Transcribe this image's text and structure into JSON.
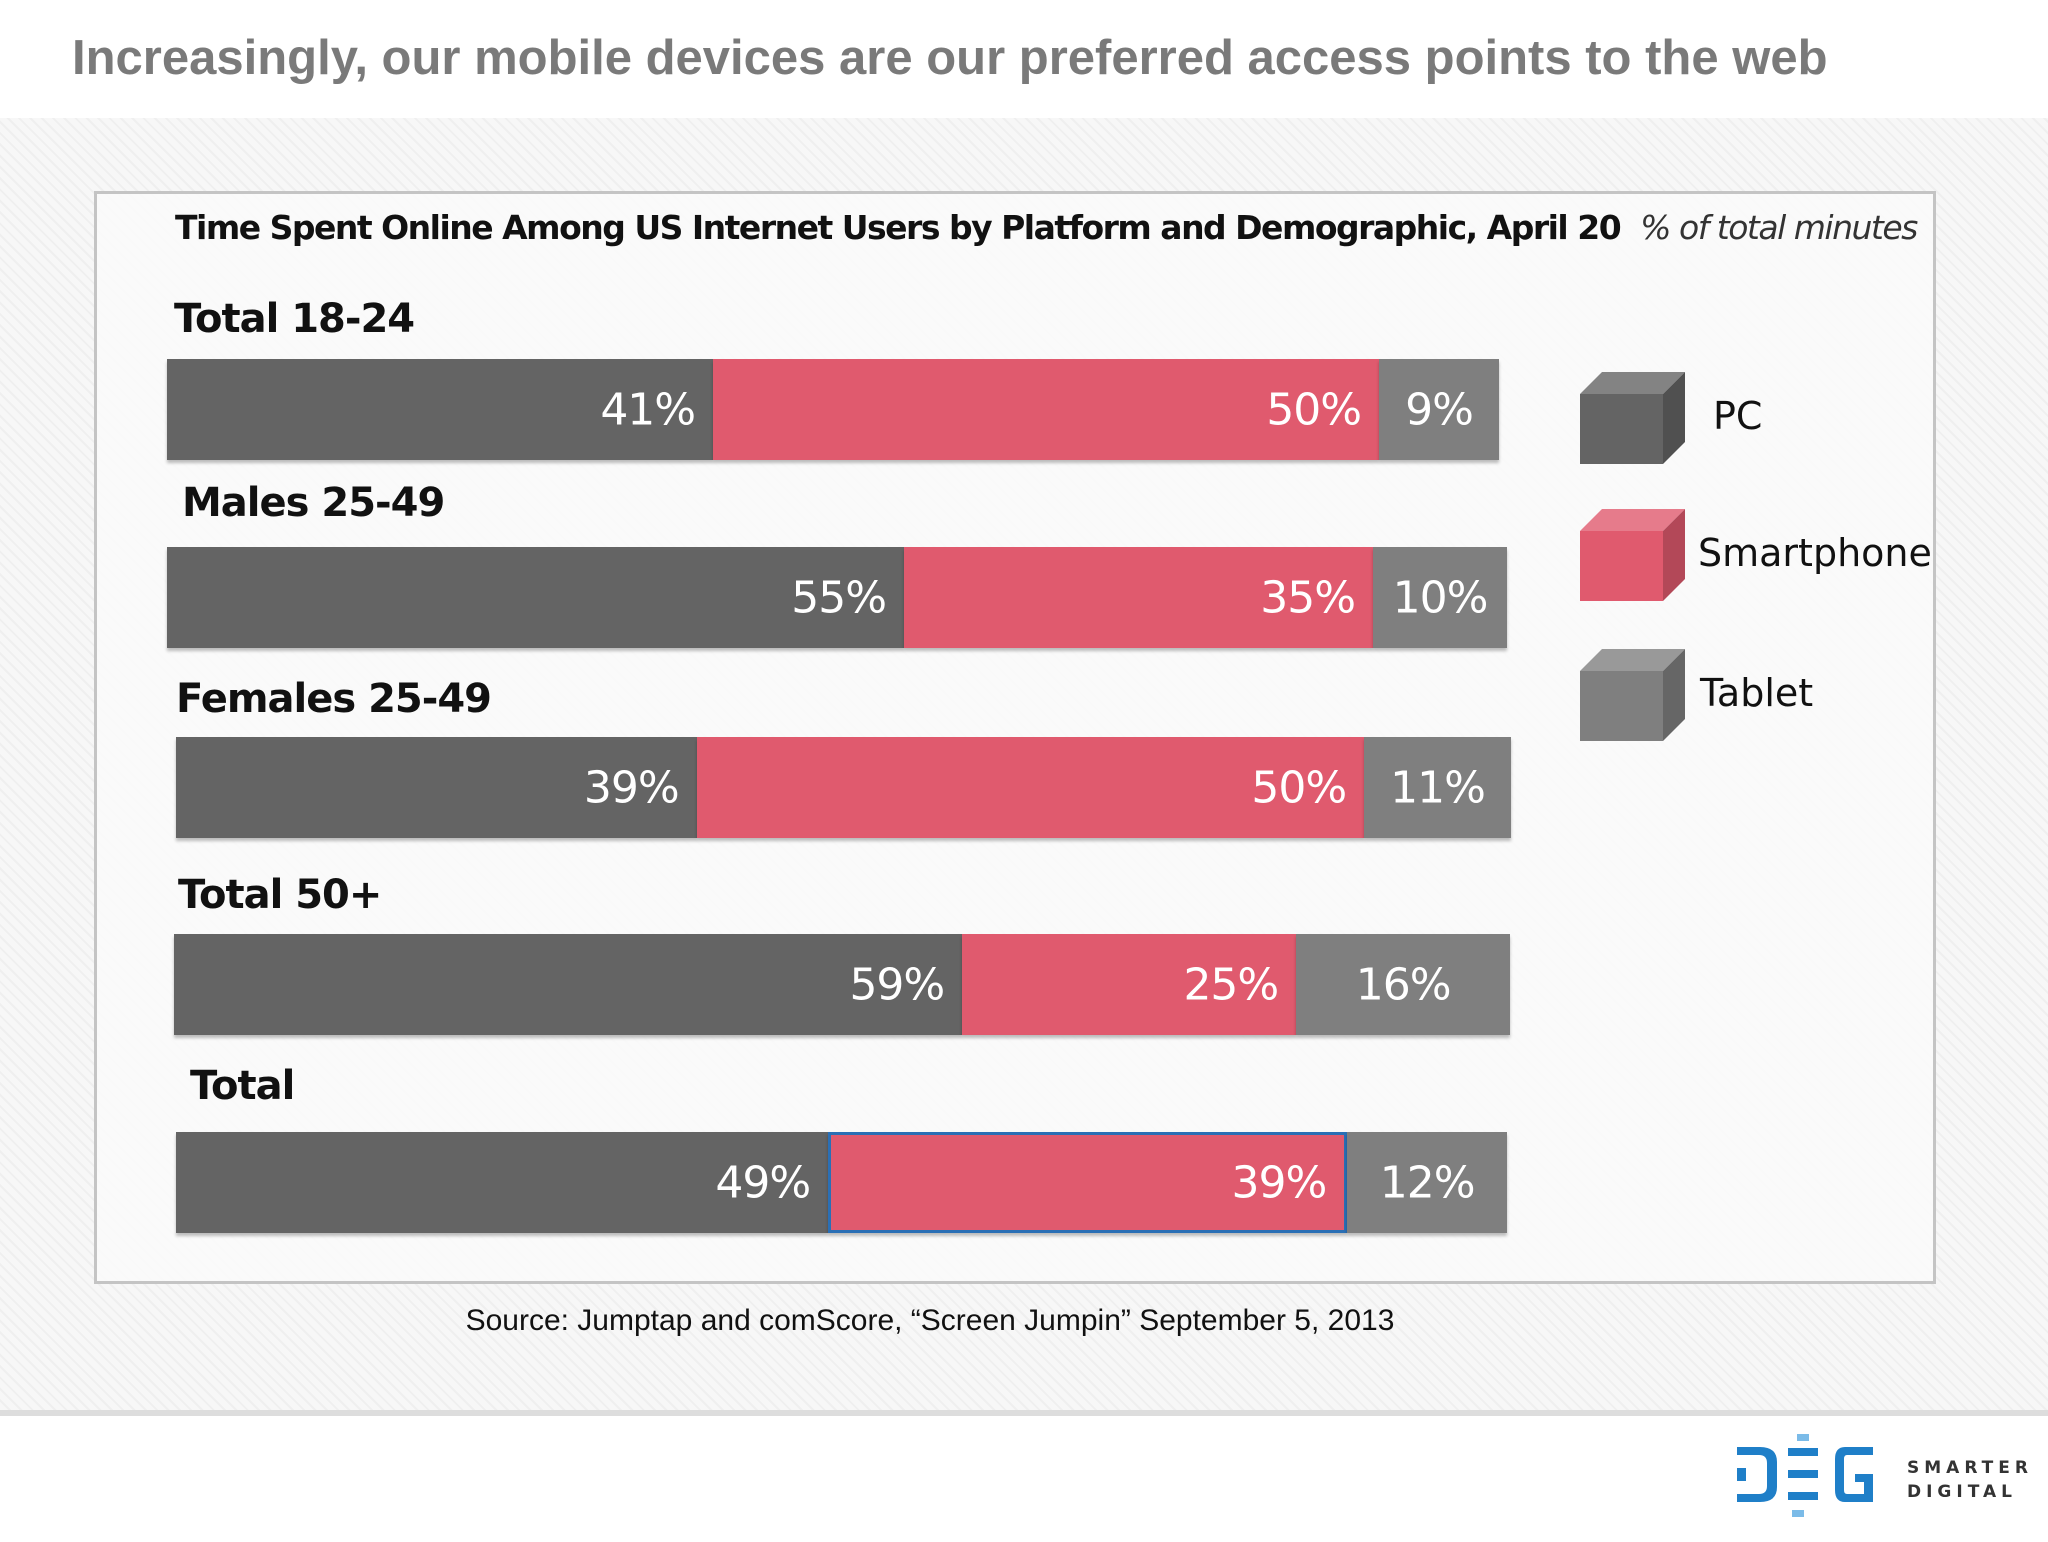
{
  "header": {
    "title": "Increasingly, our mobile devices are our preferred access points to the web"
  },
  "chart_data": {
    "type": "bar",
    "stacked": true,
    "orientation": "horizontal",
    "title": "Time Spent Online Among US Internet Users by Platform and Demographic, April 20",
    "subtitle": "% of total minutes",
    "categories": [
      "Total 18-24",
      "Males 25-49",
      "Females 25-49",
      "Total 50+",
      "Total"
    ],
    "series": [
      {
        "name": "PC",
        "color": "#646464",
        "values": [
          41,
          55,
          39,
          59,
          49
        ]
      },
      {
        "name": "Smartphone",
        "color": "#e05a6e",
        "values": [
          50,
          35,
          50,
          25,
          39
        ]
      },
      {
        "name": "Tablet",
        "color": "#7f7f7f",
        "values": [
          9,
          10,
          11,
          16,
          12
        ]
      }
    ],
    "unit": "%",
    "legend": "right"
  },
  "source": "Source: Jumptap and comScore, “Screen Jumpin” September 5, 2013",
  "logo": {
    "text": "DEG",
    "tagline1": "SMARTER",
    "tagline2": "DIGITAL",
    "color": "#1f7fc8"
  }
}
